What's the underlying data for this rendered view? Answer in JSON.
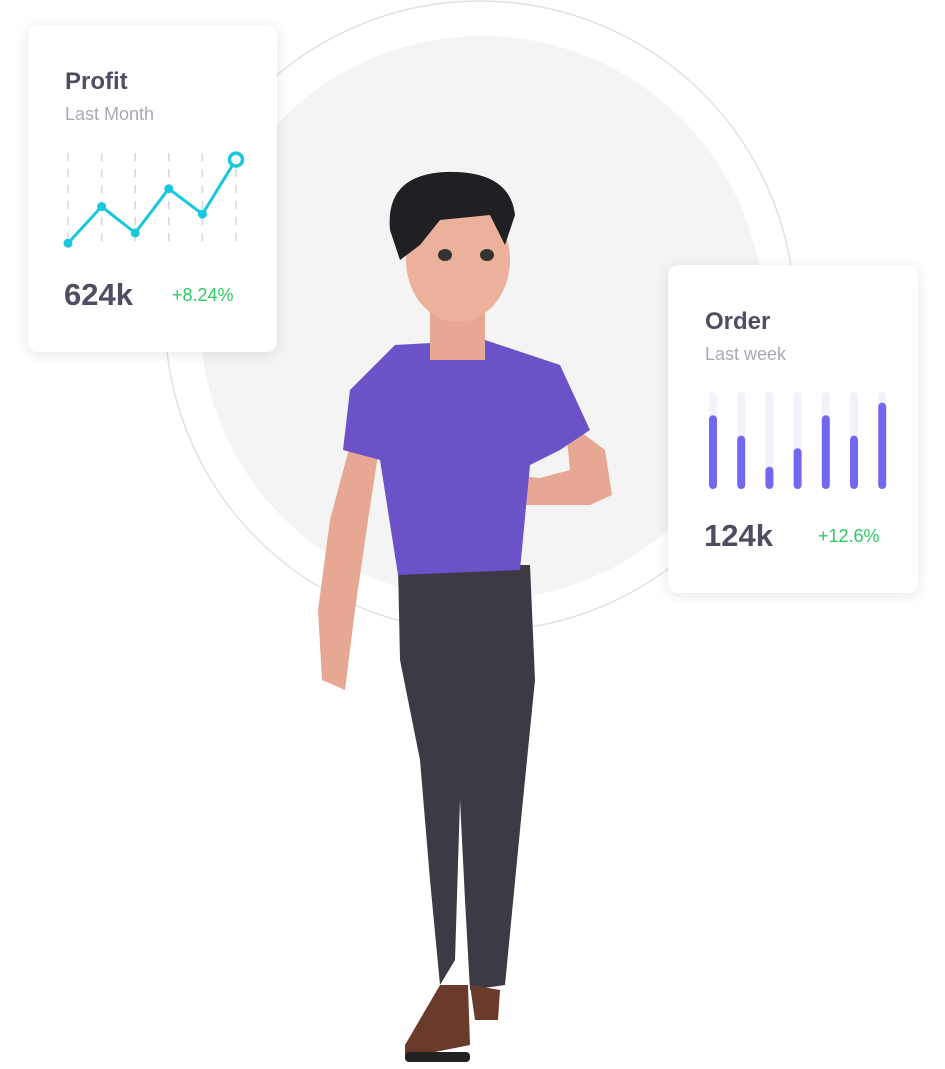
{
  "profit_card": {
    "title": "Profit",
    "subtitle": "Last Month",
    "value": "624k",
    "change": "+8.24%",
    "line_color": "#17c8dc",
    "change_color": "#2bc866"
  },
  "order_card": {
    "title": "Order",
    "subtitle": "Last week",
    "value": "124k",
    "change": "+12.6%",
    "bar_color": "#7367f0",
    "change_color": "#2bc866"
  },
  "chart_data": [
    {
      "type": "line",
      "values": [
        4,
        43,
        15,
        62,
        35,
        93
      ],
      "ylim": [
        0,
        100
      ],
      "grid": "vertical dashed",
      "highlight_last_point": true
    },
    {
      "type": "bar",
      "values": [
        0.76,
        0.55,
        0.23,
        0.42,
        0.76,
        0.55,
        0.89
      ],
      "ylim": [
        0,
        1
      ]
    }
  ],
  "illustration": {
    "subject": "3d-character-thumbs-up",
    "shirt_color": "#6b52c8",
    "pants_color": "#3e3a45"
  }
}
